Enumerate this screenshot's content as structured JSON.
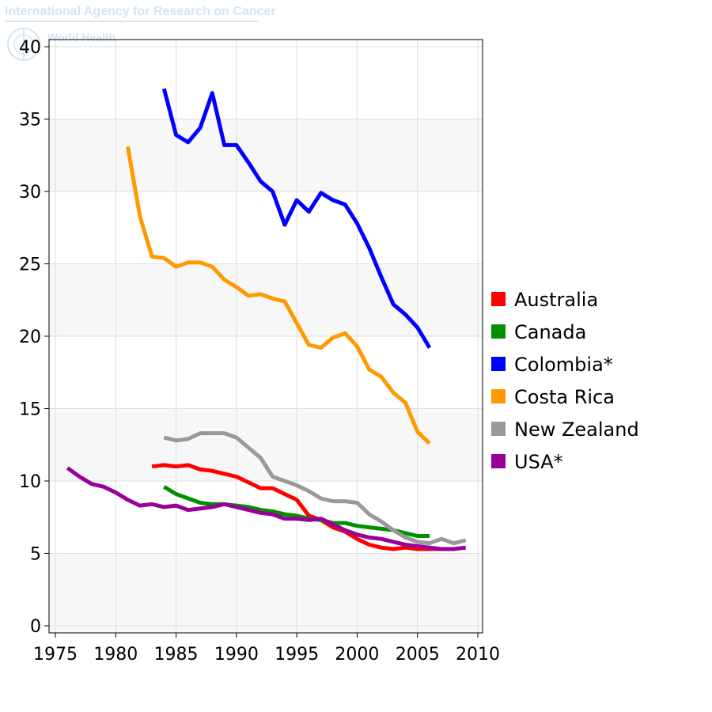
{
  "watermark": {
    "agency": "International Agency for Research on Cancer",
    "org": "World Health"
  },
  "chart_data": {
    "type": "line",
    "xlim": [
      1975,
      2010
    ],
    "ylim": [
      0,
      40
    ],
    "x_ticks": [
      1975,
      1980,
      1985,
      1990,
      1995,
      2000,
      2005,
      2010
    ],
    "y_ticks": [
      0,
      5,
      10,
      15,
      20,
      25,
      30,
      35,
      40
    ],
    "grid": true,
    "legend_position": "right",
    "series": [
      {
        "name": "Australia",
        "color": "#ff0000",
        "x": [
          1983,
          1984,
          1985,
          1986,
          1987,
          1988,
          1989,
          1990,
          1991,
          1992,
          1993,
          1994,
          1995,
          1996,
          1997,
          1998,
          1999,
          2000,
          2001,
          2002,
          2003,
          2004,
          2005,
          2006,
          2007,
          2008
        ],
        "y": [
          11.0,
          11.1,
          11.0,
          11.1,
          10.8,
          10.7,
          10.5,
          10.3,
          9.9,
          9.5,
          9.5,
          9.1,
          8.7,
          7.6,
          7.3,
          6.8,
          6.5,
          6.0,
          5.6,
          5.4,
          5.3,
          5.4,
          5.3,
          5.3,
          5.3,
          5.3
        ]
      },
      {
        "name": "Canada",
        "color": "#009000",
        "x": [
          1984,
          1985,
          1986,
          1987,
          1988,
          1989,
          1990,
          1991,
          1992,
          1993,
          1994,
          1995,
          1996,
          1997,
          1998,
          1999,
          2000,
          2001,
          2002,
          2003,
          2004,
          2005,
          2006
        ],
        "y": [
          9.6,
          9.1,
          8.8,
          8.5,
          8.4,
          8.4,
          8.3,
          8.2,
          8.0,
          7.9,
          7.7,
          7.6,
          7.4,
          7.3,
          7.1,
          7.1,
          6.9,
          6.8,
          6.7,
          6.6,
          6.4,
          6.2,
          6.2
        ]
      },
      {
        "name": "Colombia*",
        "color": "#0000ff",
        "x": [
          1984,
          1985,
          1986,
          1987,
          1988,
          1989,
          1990,
          1991,
          1992,
          1993,
          1994,
          1995,
          1996,
          1997,
          1998,
          1999,
          2000,
          2001,
          2002,
          2003,
          2004,
          2005,
          2006
        ],
        "y": [
          37.1,
          33.9,
          33.4,
          34.4,
          36.8,
          33.2,
          33.2,
          32.0,
          30.7,
          30.0,
          27.7,
          29.4,
          28.6,
          29.9,
          29.4,
          29.1,
          27.8,
          26.1,
          24.1,
          22.2,
          21.5,
          20.6,
          19.2
        ]
      },
      {
        "name": "Costa Rica",
        "color": "#ff9900",
        "x": [
          1981,
          1982,
          1983,
          1984,
          1985,
          1986,
          1987,
          1988,
          1989,
          1990,
          1991,
          1992,
          1993,
          1994,
          1995,
          1996,
          1997,
          1998,
          1999,
          2000,
          2001,
          2002,
          2003,
          2004,
          2005,
          2006
        ],
        "y": [
          33.1,
          28.3,
          25.5,
          25.4,
          24.8,
          25.1,
          25.1,
          24.8,
          23.9,
          23.4,
          22.8,
          22.9,
          22.6,
          22.4,
          20.9,
          19.4,
          19.2,
          19.9,
          20.2,
          19.3,
          17.7,
          17.2,
          16.1,
          15.4,
          13.4,
          12.6
        ]
      },
      {
        "name": "New Zealand",
        "color": "#999999",
        "x": [
          1984,
          1985,
          1986,
          1987,
          1988,
          1989,
          1990,
          1991,
          1992,
          1993,
          1994,
          1995,
          1996,
          1997,
          1998,
          1999,
          2000,
          2001,
          2002,
          2003,
          2004,
          2005,
          2006,
          2007,
          2008,
          2009
        ],
        "y": [
          13.0,
          12.8,
          12.9,
          13.3,
          13.3,
          13.3,
          13.0,
          12.3,
          11.6,
          10.3,
          10.0,
          9.7,
          9.3,
          8.8,
          8.6,
          8.6,
          8.5,
          7.7,
          7.2,
          6.6,
          6.1,
          5.8,
          5.7,
          6.0,
          5.7,
          5.9
        ]
      },
      {
        "name": "USA*",
        "color": "#990099",
        "x": [
          1976,
          1977,
          1978,
          1979,
          1980,
          1981,
          1982,
          1983,
          1984,
          1985,
          1986,
          1987,
          1988,
          1989,
          1990,
          1991,
          1992,
          1993,
          1994,
          1995,
          1996,
          1997,
          1998,
          1999,
          2000,
          2001,
          2002,
          2003,
          2004,
          2005,
          2006,
          2007,
          2008,
          2009
        ],
        "y": [
          10.9,
          10.3,
          9.8,
          9.6,
          9.2,
          8.7,
          8.3,
          8.4,
          8.2,
          8.3,
          8.0,
          8.1,
          8.2,
          8.4,
          8.2,
          8.0,
          7.8,
          7.7,
          7.4,
          7.4,
          7.3,
          7.4,
          7.0,
          6.6,
          6.3,
          6.1,
          6.0,
          5.8,
          5.6,
          5.5,
          5.4,
          5.3,
          5.3,
          5.4
        ]
      }
    ]
  }
}
